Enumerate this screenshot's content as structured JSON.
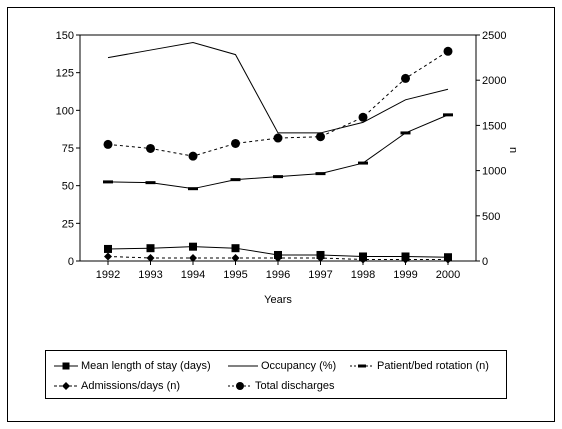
{
  "chart_data": {
    "type": "line",
    "title": "",
    "xlabel": "Years",
    "ylabel_left": "",
    "ylabel_right": "n",
    "categories": [
      "1992",
      "1993",
      "1994",
      "1995",
      "1996",
      "1997",
      "1998",
      "1999",
      "2000"
    ],
    "y_left": {
      "min": 0,
      "max": 150,
      "ticks": [
        "0",
        "25",
        "50",
        "75",
        "100",
        "125",
        "150"
      ]
    },
    "y_right": {
      "min": 0,
      "max": 2500,
      "ticks": [
        "0",
        "500",
        "1000",
        "1500",
        "2000",
        "2500"
      ]
    },
    "grid": false,
    "legend_position": "bottom",
    "series": [
      {
        "name": "Mean length of stay (days)",
        "axis": "left",
        "style": "solid",
        "marker": "square",
        "values": [
          8,
          8.5,
          9.5,
          8.5,
          4,
          4,
          3,
          3,
          2.5
        ]
      },
      {
        "name": "Occupancy (%)",
        "axis": "left",
        "style": "solid",
        "marker": "none",
        "values": [
          135,
          140,
          145,
          137,
          85,
          85,
          92,
          107,
          114
        ]
      },
      {
        "name": "Patient/bed rotation (n)",
        "axis": "left",
        "style": "solid",
        "marker": "dash",
        "values": [
          52.5,
          52,
          48,
          54,
          56,
          58,
          65,
          85,
          97
        ]
      },
      {
        "name": "Admissions/days (n)",
        "axis": "left",
        "style": "dashed",
        "marker": "diamond",
        "values": [
          3,
          2,
          2,
          2,
          2,
          2,
          1,
          1,
          1
        ]
      },
      {
        "name": "Total discharges",
        "axis": "right",
        "style": "dashed",
        "marker": "circle",
        "values": [
          1290,
          1245,
          1160,
          1300,
          1360,
          1375,
          1590,
          2020,
          2320
        ]
      }
    ]
  },
  "legend_labels": {
    "s0": "Mean length of stay (days)",
    "s1": "Occupancy (%)",
    "s2": "Patient/bed rotation (n)",
    "s3": "Admissions/days (n)",
    "s4": "Total discharges"
  }
}
